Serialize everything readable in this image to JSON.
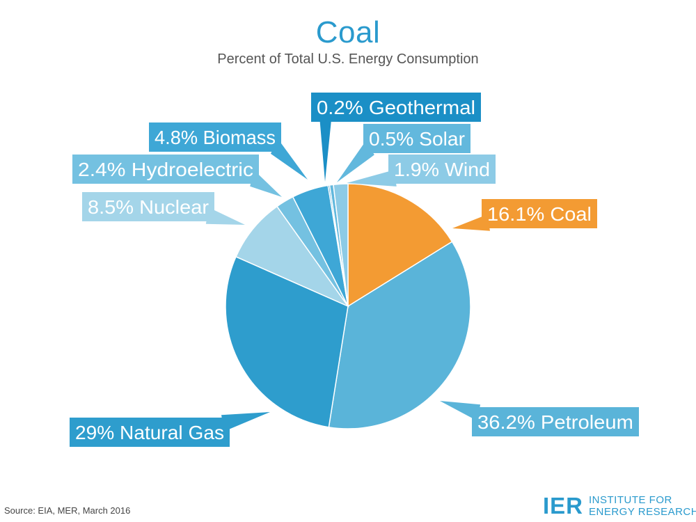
{
  "chart_data": {
    "type": "pie",
    "title": "Coal",
    "subtitle": "Percent of Total U.S. Energy Consumption",
    "slices": [
      {
        "label": "Coal",
        "value": 16.1,
        "text": "16.1% Coal",
        "color": "#f39b33",
        "box_color": "#f39b33"
      },
      {
        "label": "Petroleum",
        "value": 36.2,
        "text": "36.2% Petroleum",
        "color": "#5ab4d9",
        "box_color": "#5ab4d9"
      },
      {
        "label": "Natural Gas",
        "value": 29,
        "text": "29% Natural Gas",
        "color": "#2e9dcd",
        "box_color": "#2e9dcd"
      },
      {
        "label": "Nuclear",
        "value": 8.5,
        "text": "8.5% Nuclear",
        "color": "#a4d5e9",
        "box_color": "#a4d5e9"
      },
      {
        "label": "Hydroelectric",
        "value": 2.4,
        "text": "2.4% Hydroelectric",
        "color": "#74c1e1",
        "box_color": "#74c1e1"
      },
      {
        "label": "Biomass",
        "value": 4.8,
        "text": "4.8% Biomass",
        "color": "#3ea7d6",
        "box_color": "#3ea7d6"
      },
      {
        "label": "Geothermal",
        "value": 0.2,
        "text": "0.2% Geothermal",
        "color": "#1b8fc6",
        "box_color": "#1b8fc6"
      },
      {
        "label": "Solar",
        "value": 0.5,
        "text": "0.5% Solar",
        "color": "#62b8dd",
        "box_color": "#62b8dd"
      },
      {
        "label": "Wind",
        "value": 1.9,
        "text": "1.9% Wind",
        "color": "#8dcbe6",
        "box_color": "#8dcbe6"
      }
    ]
  },
  "footer": {
    "source": "Source: EIA, MER, March 2016",
    "logo_mark": "IER",
    "logo_line1": "INSTITUTE FOR",
    "logo_line2": "ENERGY RESEARCH"
  }
}
